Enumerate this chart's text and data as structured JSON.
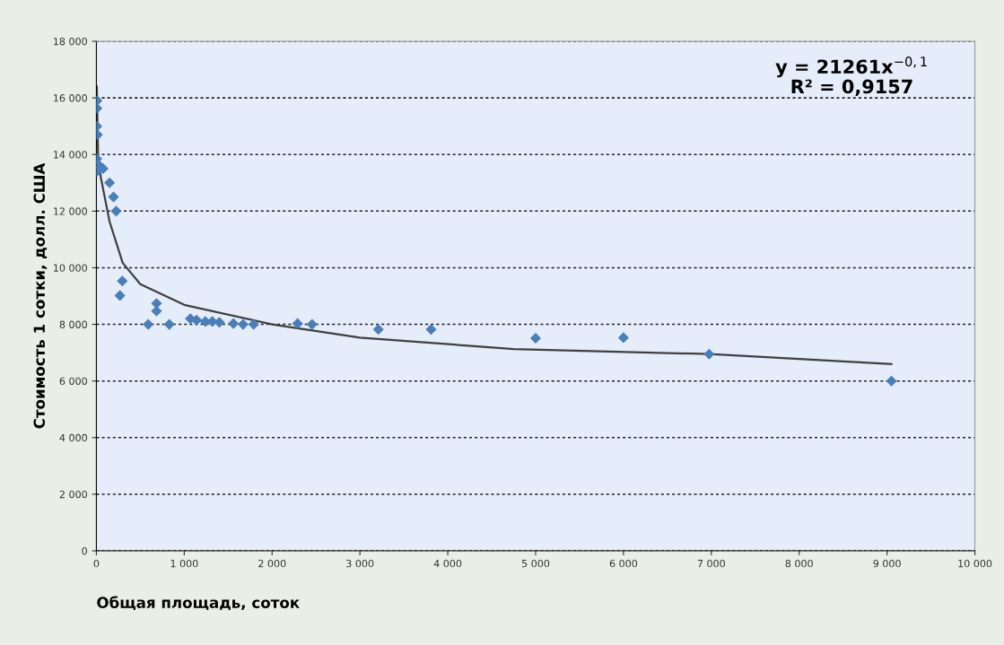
{
  "chart_data": {
    "type": "scatter",
    "xlabel": "Общая площадь, соток",
    "ylabel": "Стоимость 1 сотки, долл. США",
    "annotations": [
      "y = 21261x$^{−0,1}$\nR² = 0,9157"
    ],
    "series": [
      {
        "color": "#4a7ebb",
        "marker": "diamond",
        "x": [
          7,
          7,
          5,
          12,
          5,
          20,
          5,
          77,
          150,
          195,
          225,
          295,
          268,
          590,
          685,
          685,
          830,
          1070,
          1140,
          1240,
          1320,
          1400,
          1560,
          1670,
          1790,
          2290,
          2455,
          3210,
          3810,
          5000,
          6000,
          6975,
          9050
        ],
        "values": [
          15900,
          15630,
          15000,
          14700,
          13850,
          13650,
          13400,
          13500,
          13000,
          12500,
          12000,
          9530,
          9020,
          8000,
          8740,
          8470,
          8000,
          8200,
          8150,
          8100,
          8100,
          8070,
          8030,
          8000,
          8000,
          8030,
          8000,
          7820,
          7820,
          7510,
          7530,
          6950,
          6000
        ]
      },
      {
        "type": "line",
        "color": "#404040",
        "marker": "none",
        "x": [
          5,
          20,
          50,
          150,
          300,
          500,
          1000,
          2000,
          3000,
          4750,
          6975,
          9050
        ],
        "values": [
          16400,
          13900,
          13200,
          11630,
          10170,
          9420,
          8690,
          8000,
          7530,
          7130,
          6950,
          6600
        ]
      }
    ],
    "xlim": [
      0,
      10000
    ],
    "xticks": [
      0,
      {
        "value": 1000,
        "label": "1 000"
      },
      {
        "value": 2000,
        "label": "2 000"
      },
      {
        "value": 3000,
        "label": "3 000"
      },
      {
        "value": 4000,
        "label": "4 000"
      },
      {
        "value": 5000,
        "label": "5 000"
      },
      {
        "value": 6000,
        "label": "6 000"
      },
      {
        "value": 7000,
        "label": "7 000"
      },
      {
        "value": 8000,
        "label": "8 000"
      },
      {
        "value": 9000,
        "label": "9 000"
      },
      {
        "value": 10000,
        "label": "10 000"
      }
    ],
    "ylim": [
      0,
      18000
    ],
    "yticks": [
      0,
      {
        "value": 2000,
        "label": "2 000"
      },
      {
        "value": 4000,
        "label": "4 000"
      },
      {
        "value": 6000,
        "label": "6 000"
      },
      {
        "value": 8000,
        "label": "8 000"
      },
      {
        "value": 10000,
        "label": "10 000"
      },
      {
        "value": 12000,
        "label": "12 000"
      },
      {
        "value": 14000,
        "label": "14 000"
      },
      {
        "value": 16000,
        "label": "16 000"
      },
      {
        "value": 18000,
        "label": "18 000"
      }
    ],
    "grid": "y"
  }
}
